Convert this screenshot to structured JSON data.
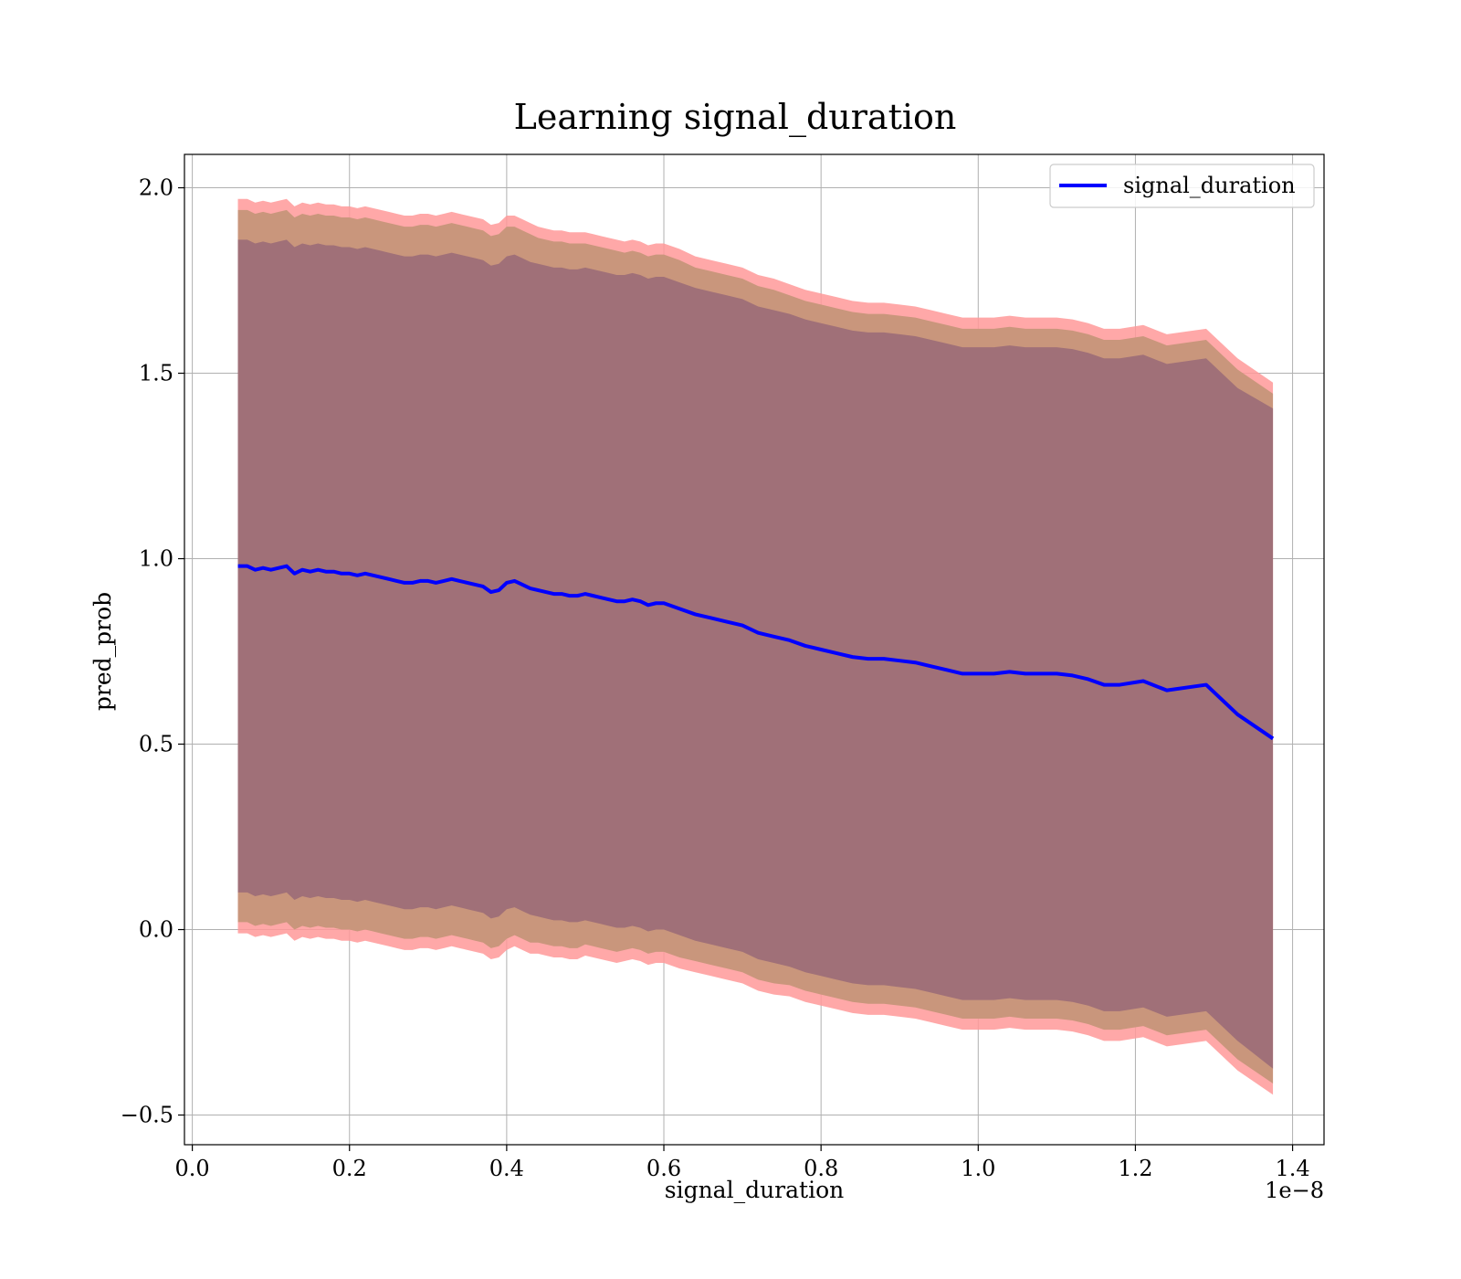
{
  "chart_data": {
    "type": "line",
    "title": "Learning signal_duration",
    "xlabel": "signal_duration",
    "ylabel": "pred_prob",
    "x_offset_label": "1e−8",
    "xlim": [
      -0.01,
      1.44
    ],
    "ylim": [
      -0.58,
      2.09
    ],
    "x_ticks": [
      0.0,
      0.2,
      0.4,
      0.6,
      0.8,
      1.0,
      1.2,
      1.4
    ],
    "x_tick_labels": [
      "0.0",
      "0.2",
      "0.4",
      "0.6",
      "0.8",
      "1.0",
      "1.2",
      "1.4"
    ],
    "y_ticks": [
      -0.5,
      0.0,
      0.5,
      1.0,
      1.5,
      2.0
    ],
    "y_tick_labels": [
      "−0.5",
      "0.0",
      "0.5",
      "1.0",
      "1.5",
      "2.0"
    ],
    "grid": true,
    "legend_position": "top-right",
    "colors": {
      "line": "#0000ff",
      "outer_band": "#ff9999",
      "middle_band": "#c9967c",
      "inner_band": "#a07078"
    },
    "x": [
      0.058,
      0.07,
      0.08,
      0.09,
      0.1,
      0.11,
      0.12,
      0.13,
      0.14,
      0.15,
      0.16,
      0.17,
      0.18,
      0.19,
      0.2,
      0.21,
      0.22,
      0.23,
      0.24,
      0.25,
      0.26,
      0.27,
      0.28,
      0.29,
      0.3,
      0.31,
      0.32,
      0.33,
      0.34,
      0.35,
      0.36,
      0.37,
      0.38,
      0.39,
      0.4,
      0.41,
      0.42,
      0.43,
      0.44,
      0.45,
      0.46,
      0.47,
      0.48,
      0.49,
      0.5,
      0.51,
      0.52,
      0.53,
      0.54,
      0.55,
      0.56,
      0.57,
      0.58,
      0.59,
      0.6,
      0.62,
      0.64,
      0.66,
      0.68,
      0.7,
      0.72,
      0.74,
      0.76,
      0.78,
      0.8,
      0.82,
      0.84,
      0.86,
      0.88,
      0.9,
      0.92,
      0.94,
      0.96,
      0.98,
      1.0,
      1.02,
      1.04,
      1.06,
      1.08,
      1.1,
      1.12,
      1.14,
      1.16,
      1.18,
      1.21,
      1.24,
      1.29,
      1.33,
      1.375
    ],
    "series": [
      {
        "name": "signal_duration",
        "values": [
          0.98,
          0.98,
          0.97,
          0.975,
          0.97,
          0.975,
          0.98,
          0.96,
          0.97,
          0.965,
          0.97,
          0.965,
          0.965,
          0.96,
          0.96,
          0.955,
          0.96,
          0.955,
          0.95,
          0.945,
          0.94,
          0.935,
          0.935,
          0.94,
          0.94,
          0.935,
          0.94,
          0.945,
          0.94,
          0.935,
          0.93,
          0.925,
          0.91,
          0.915,
          0.935,
          0.94,
          0.93,
          0.92,
          0.915,
          0.91,
          0.905,
          0.905,
          0.9,
          0.9,
          0.905,
          0.9,
          0.895,
          0.89,
          0.885,
          0.885,
          0.89,
          0.885,
          0.875,
          0.88,
          0.88,
          0.865,
          0.85,
          0.84,
          0.83,
          0.82,
          0.8,
          0.79,
          0.78,
          0.765,
          0.755,
          0.745,
          0.735,
          0.73,
          0.73,
          0.725,
          0.72,
          0.71,
          0.7,
          0.69,
          0.69,
          0.69,
          0.695,
          0.69,
          0.69,
          0.69,
          0.685,
          0.675,
          0.66,
          0.66,
          0.67,
          0.645,
          0.66,
          0.58,
          0.515
        ]
      }
    ],
    "bands": [
      {
        "role": "outer",
        "half_width": [
          0.99,
          0.99,
          0.99,
          0.99,
          0.99,
          0.99,
          0.99,
          0.99,
          0.99,
          0.99,
          0.99,
          0.99,
          0.99,
          0.99,
          0.99,
          0.99,
          0.99,
          0.99,
          0.99,
          0.99,
          0.99,
          0.99,
          0.99,
          0.99,
          0.99,
          0.99,
          0.99,
          0.99,
          0.99,
          0.99,
          0.99,
          0.99,
          0.99,
          0.99,
          0.99,
          0.985,
          0.985,
          0.985,
          0.98,
          0.98,
          0.98,
          0.98,
          0.98,
          0.98,
          0.975,
          0.975,
          0.975,
          0.975,
          0.975,
          0.97,
          0.97,
          0.97,
          0.97,
          0.97,
          0.97,
          0.97,
          0.965,
          0.965,
          0.965,
          0.965,
          0.965,
          0.965,
          0.96,
          0.96,
          0.96,
          0.96,
          0.96,
          0.96,
          0.96,
          0.96,
          0.96,
          0.96,
          0.96,
          0.96,
          0.96,
          0.96,
          0.96,
          0.96,
          0.96,
          0.96,
          0.96,
          0.96,
          0.96,
          0.96,
          0.96,
          0.96,
          0.96,
          0.96,
          0.96
        ]
      },
      {
        "role": "middle",
        "half_width": [
          0.96,
          0.96,
          0.96,
          0.96,
          0.96,
          0.96,
          0.96,
          0.96,
          0.96,
          0.96,
          0.96,
          0.96,
          0.96,
          0.96,
          0.96,
          0.96,
          0.96,
          0.96,
          0.96,
          0.96,
          0.96,
          0.96,
          0.96,
          0.96,
          0.96,
          0.96,
          0.96,
          0.96,
          0.96,
          0.96,
          0.96,
          0.96,
          0.96,
          0.96,
          0.96,
          0.955,
          0.955,
          0.955,
          0.95,
          0.95,
          0.95,
          0.95,
          0.95,
          0.95,
          0.945,
          0.945,
          0.945,
          0.945,
          0.945,
          0.94,
          0.94,
          0.94,
          0.94,
          0.94,
          0.94,
          0.94,
          0.935,
          0.935,
          0.935,
          0.935,
          0.935,
          0.935,
          0.93,
          0.93,
          0.93,
          0.93,
          0.93,
          0.93,
          0.93,
          0.93,
          0.93,
          0.93,
          0.93,
          0.93,
          0.93,
          0.93,
          0.93,
          0.93,
          0.93,
          0.93,
          0.93,
          0.93,
          0.93,
          0.93,
          0.93,
          0.93,
          0.93,
          0.93,
          0.93
        ]
      },
      {
        "role": "inner",
        "half_width": [
          0.88,
          0.88,
          0.88,
          0.88,
          0.88,
          0.88,
          0.88,
          0.88,
          0.88,
          0.88,
          0.88,
          0.88,
          0.88,
          0.88,
          0.88,
          0.88,
          0.88,
          0.88,
          0.88,
          0.88,
          0.88,
          0.88,
          0.88,
          0.88,
          0.88,
          0.88,
          0.88,
          0.88,
          0.88,
          0.88,
          0.88,
          0.88,
          0.88,
          0.88,
          0.88,
          0.88,
          0.88,
          0.88,
          0.88,
          0.88,
          0.88,
          0.88,
          0.88,
          0.88,
          0.88,
          0.88,
          0.88,
          0.88,
          0.88,
          0.88,
          0.88,
          0.88,
          0.88,
          0.88,
          0.88,
          0.88,
          0.88,
          0.88,
          0.88,
          0.88,
          0.88,
          0.88,
          0.88,
          0.88,
          0.88,
          0.88,
          0.88,
          0.88,
          0.88,
          0.88,
          0.88,
          0.88,
          0.88,
          0.88,
          0.88,
          0.88,
          0.88,
          0.88,
          0.88,
          0.88,
          0.88,
          0.88,
          0.88,
          0.88,
          0.88,
          0.88,
          0.88,
          0.88,
          0.89
        ]
      }
    ]
  }
}
